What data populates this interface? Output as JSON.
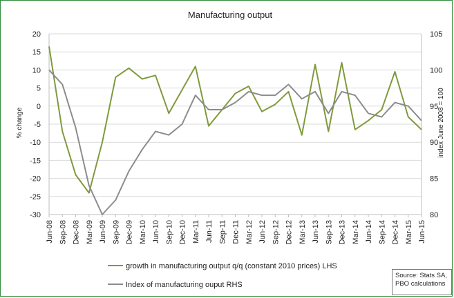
{
  "source_note": [
    "Source: Stats SA,",
    "PBO calculations"
  ],
  "chart_data": {
    "type": "line",
    "title": "Manufacturing output",
    "ylabel_left": "% change",
    "ylabel_right": "index June 2008 = 100",
    "ylim_left": [
      -30,
      20
    ],
    "ylim_right": [
      80,
      105
    ],
    "yticks_left": [
      20,
      15,
      10,
      5,
      0,
      -5,
      -10,
      -15,
      -20,
      -25,
      -30
    ],
    "yticks_right": [
      105,
      100,
      95,
      90,
      85,
      80
    ],
    "categories": [
      "Jun-08",
      "Sep-08",
      "Dec-08",
      "Mar-09",
      "Jun-09",
      "Sep-09",
      "Dec-09",
      "Mar-10",
      "Jun-10",
      "Sep-10",
      "Dec-10",
      "Mar-11",
      "Jun-11",
      "Sep-11",
      "Dec-11",
      "Mar-12",
      "Jun-12",
      "Sep-12",
      "Dec-12",
      "Mar-13",
      "Jun-13",
      "Sep-13",
      "Dec-13",
      "Mar-14",
      "Jun-14",
      "Sep-14",
      "Dec-14",
      "Mar-15",
      "Jun-15"
    ],
    "legend_position": "bottom",
    "series": [
      {
        "name": "growth in manufacturing output q/q (constant 2010 prices) LHS",
        "axis": "left",
        "color": "#7f9a3b",
        "values": [
          16.5,
          -7,
          -19,
          -24,
          -10,
          8,
          10.5,
          7.5,
          8.5,
          -2,
          4.5,
          11,
          -5.5,
          -1,
          3.5,
          5.5,
          -1.5,
          0.5,
          4,
          -8,
          11.5,
          -7,
          12,
          -6.5,
          -4,
          -1,
          9.5,
          -3,
          -6.5
        ]
      },
      {
        "name": "Index of manufacturing ouput RHS",
        "axis": "right",
        "color": "#8c8c8c",
        "values": [
          100,
          98,
          92,
          84,
          80,
          82,
          86,
          89,
          91.5,
          91,
          92.5,
          96.5,
          94.5,
          94.5,
          95.5,
          97,
          96.5,
          96.5,
          98,
          96,
          97,
          94,
          97,
          96.5,
          94,
          93.5,
          95.5,
          95,
          93
        ]
      }
    ]
  }
}
